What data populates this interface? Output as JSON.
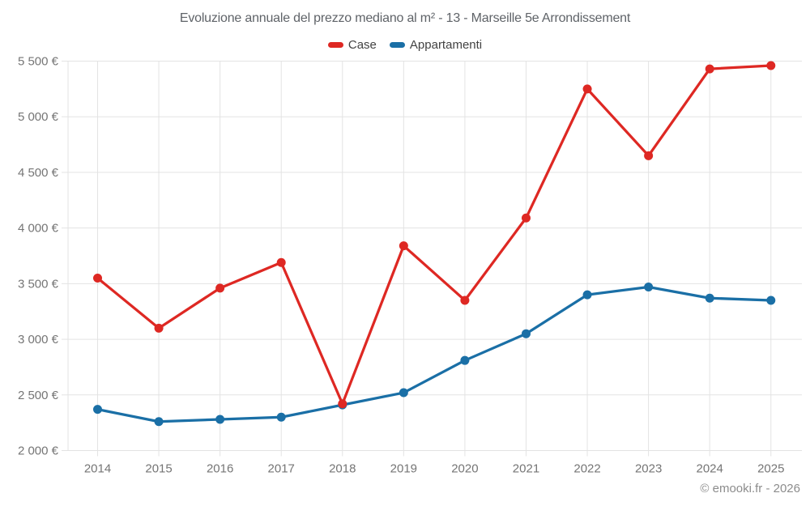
{
  "header": {
    "title": "Evoluzione annuale del prezzo mediano al m² - 13 - Marseille 5e Arrondissement"
  },
  "footer": {
    "credit": "© emooki.fr - 2026"
  },
  "chart_data": {
    "type": "line",
    "title": "Evoluzione annuale del prezzo mediano al m² - 13 - Marseille 5e Arrondissement",
    "x_labels": [
      "2014",
      "2015",
      "2016",
      "2017",
      "2018",
      "2019",
      "2020",
      "2021",
      "2022",
      "2023",
      "2024",
      "2025"
    ],
    "series": [
      {
        "name": "Case",
        "color": "#de2823",
        "values": [
          3550,
          3100,
          3460,
          3690,
          2420,
          3840,
          3350,
          4090,
          5250,
          4650,
          5430,
          5460
        ]
      },
      {
        "name": "Appartamenti",
        "color": "#1a6fa6",
        "values": [
          2370,
          2260,
          2280,
          2300,
          2410,
          2520,
          2810,
          3050,
          3400,
          3470,
          3370,
          3350
        ]
      }
    ],
    "ylabel": "",
    "xlabel": "",
    "ylim": [
      2000,
      5500
    ],
    "y_tick_step": 500,
    "y_tick_labels": [
      "2 000 €",
      "2 500 €",
      "3 000 €",
      "3 500 €",
      "4 000 €",
      "4 500 €",
      "5 000 €",
      "5 500 €"
    ],
    "grid": true,
    "legend_position": "top-center",
    "axis_color": "#e3e3e3",
    "tick_label_color": "#757575"
  }
}
